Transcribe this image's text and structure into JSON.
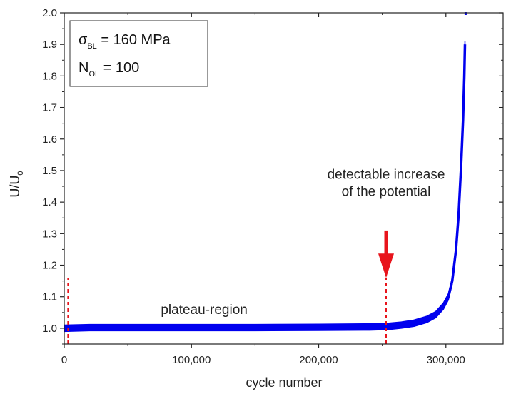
{
  "chart_data": {
    "type": "line",
    "xlabel": "cycle number",
    "ylabel": "U/U",
    "ylabel_sub": "0",
    "xlim": [
      0,
      345000
    ],
    "ylim": [
      0.95,
      2.0
    ],
    "x_ticks": [
      0,
      100000,
      200000,
      300000
    ],
    "x_tick_labels": [
      "0",
      "100,000",
      "200,000",
      "300,000"
    ],
    "y_ticks": [
      1.0,
      1.1,
      1.2,
      1.3,
      1.4,
      1.5,
      1.6,
      1.7,
      1.8,
      1.9,
      2.0
    ],
    "y_tick_labels": [
      "1.0",
      "1.1",
      "1.2",
      "1.3",
      "1.4",
      "1.5",
      "1.6",
      "1.7",
      "1.8",
      "1.9",
      "2.0"
    ],
    "series": [
      {
        "color": "#0000ee",
        "x": [
          0,
          20000,
          50000,
          100000,
          150000,
          200000,
          240000,
          255000,
          265000,
          275000,
          285000,
          292000,
          298000,
          302000,
          305000,
          308000,
          310000,
          312000,
          313500,
          314500,
          315000
        ],
        "y": [
          1.0,
          1.002,
          1.002,
          1.002,
          1.002,
          1.003,
          1.004,
          1.006,
          1.01,
          1.016,
          1.028,
          1.043,
          1.07,
          1.1,
          1.15,
          1.25,
          1.36,
          1.52,
          1.66,
          1.8,
          1.9
        ]
      }
    ],
    "outlier_points": [
      {
        "x": 315500,
        "y": 2.0
      }
    ],
    "band_halfwidth": 0.01,
    "vlines": [
      {
        "x": 3000,
        "y_from": 0.95,
        "y_to": 1.16,
        "color": "#e8141c",
        "style": "dashed"
      },
      {
        "x": 253000,
        "y_from": 0.95,
        "y_to": 1.16,
        "color": "#e8141c",
        "style": "dashed"
      }
    ],
    "arrow": {
      "x": 253000,
      "y_from": 1.31,
      "y_to": 1.16,
      "color": "#e8141c"
    },
    "annotations": [
      {
        "lines": [
          "detectable increase",
          "of the potential"
        ],
        "x": 253000,
        "y": 1.42
      },
      {
        "lines": [
          "plateau-region"
        ],
        "x": 110000,
        "y": 1.045
      }
    ],
    "legend": {
      "placement": "top-left",
      "entries": [
        {
          "symbol": "σ",
          "sub": "BL",
          "text": " = 160 MPa"
        },
        {
          "symbol": "N",
          "sub": "OL",
          "text": " = 100"
        }
      ]
    }
  }
}
